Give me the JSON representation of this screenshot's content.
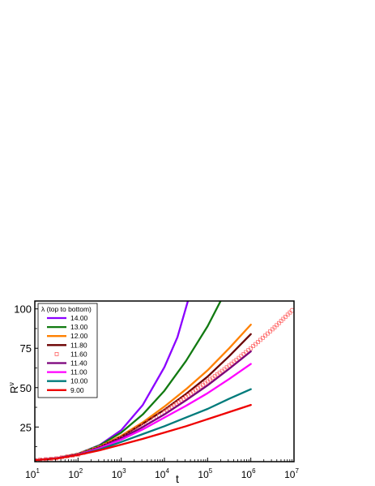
{
  "chart_data": {
    "type": "line",
    "xlabel": "t",
    "ylabel": "R",
    "ylabel_sup": "ν",
    "xscale": "log",
    "xlim": [
      10,
      10000000
    ],
    "ylim": [
      3,
      105
    ],
    "x_ticks": [
      {
        "value": 10,
        "base": "10",
        "exp": "1"
      },
      {
        "value": 100,
        "base": "10",
        "exp": "2"
      },
      {
        "value": 1000,
        "base": "10",
        "exp": "3"
      },
      {
        "value": 10000,
        "base": "10",
        "exp": "4"
      },
      {
        "value": 100000,
        "base": "10",
        "exp": "5"
      },
      {
        "value": 1000000,
        "base": "10",
        "exp": "6"
      },
      {
        "value": 10000000,
        "base": "10",
        "exp": "7"
      }
    ],
    "y_ticks": [
      {
        "value": 25,
        "label": "25"
      },
      {
        "value": 50,
        "label": "50"
      },
      {
        "value": 75,
        "label": "75"
      },
      {
        "value": 100,
        "label": "100"
      }
    ],
    "legend": {
      "title": "λ (top to bottom)",
      "position": "top-left"
    },
    "series": [
      {
        "name": "14.00",
        "color": "#8b00ff",
        "style": "line",
        "x": [
          10,
          31.6,
          100,
          316,
          1000,
          3162,
          10000,
          20000,
          35000
        ],
        "y": [
          4,
          5.2,
          8,
          13.5,
          23,
          39,
          63,
          82,
          105
        ]
      },
      {
        "name": "13.00",
        "color": "#117a11",
        "style": "line",
        "x": [
          10,
          31.6,
          100,
          316,
          1000,
          3162,
          10000,
          31623,
          100000,
          200000
        ],
        "y": [
          4,
          5.2,
          8,
          13.3,
          21.5,
          33,
          48,
          67,
          89,
          105
        ]
      },
      {
        "name": "12.00",
        "color": "#ff8000",
        "style": "line",
        "x": [
          10,
          31.6,
          100,
          316,
          1000,
          3162,
          10000,
          31623,
          100000,
          316228,
          1000000
        ],
        "y": [
          4,
          5.1,
          7.7,
          12.5,
          19.5,
          28,
          38,
          49,
          61,
          75,
          90
        ]
      },
      {
        "name": "11.80",
        "color": "#6b0000",
        "style": "line",
        "x": [
          10,
          31.6,
          100,
          316,
          1000,
          3162,
          10000,
          31623,
          100000,
          316228,
          1000000
        ],
        "y": [
          4,
          5.1,
          7.6,
          12.2,
          18.8,
          27,
          36,
          46,
          57,
          70,
          84
        ]
      },
      {
        "name": "11.60",
        "color": "#ff6060",
        "style": "markers",
        "x": [
          10,
          31.6,
          100,
          316,
          1000,
          3162,
          10000,
          31623,
          100000,
          316228,
          1000000,
          3162278,
          9000000
        ],
        "y": [
          4,
          5.1,
          7.5,
          12,
          18.2,
          26,
          34.5,
          44,
          54,
          64,
          75,
          87,
          99
        ]
      },
      {
        "name": "11.40",
        "color": "#7a007a",
        "style": "line",
        "x": [
          10,
          31.6,
          100,
          316,
          1000,
          3162,
          10000,
          31623,
          100000,
          316228,
          1000000
        ],
        "y": [
          4,
          5.1,
          7.5,
          11.8,
          17.8,
          25,
          33,
          42,
          51.5,
          62,
          73
        ]
      },
      {
        "name": "11.00",
        "color": "#ff00ff",
        "style": "line",
        "x": [
          10,
          31.6,
          100,
          316,
          1000,
          3162,
          10000,
          31623,
          100000,
          316228,
          1000000
        ],
        "y": [
          4,
          5.1,
          7.4,
          11.5,
          17,
          23.5,
          31,
          38.5,
          46.5,
          55.5,
          65
        ]
      },
      {
        "name": "10.00",
        "color": "#007b7b",
        "style": "line",
        "x": [
          10,
          31.6,
          100,
          316,
          1000,
          3162,
          10000,
          31623,
          100000,
          316228,
          1000000
        ],
        "y": [
          4,
          5,
          7.3,
          10.8,
          15.5,
          20.5,
          25.5,
          31,
          36.5,
          43,
          49
        ]
      },
      {
        "name": "9.00",
        "color": "#ee0000",
        "style": "line",
        "x": [
          10,
          31.6,
          100,
          316,
          1000,
          3162,
          10000,
          31623,
          100000,
          316228,
          1000000
        ],
        "y": [
          4,
          5,
          7.2,
          10.2,
          13.8,
          17.5,
          21.5,
          25.5,
          30,
          34.5,
          39
        ]
      }
    ]
  }
}
